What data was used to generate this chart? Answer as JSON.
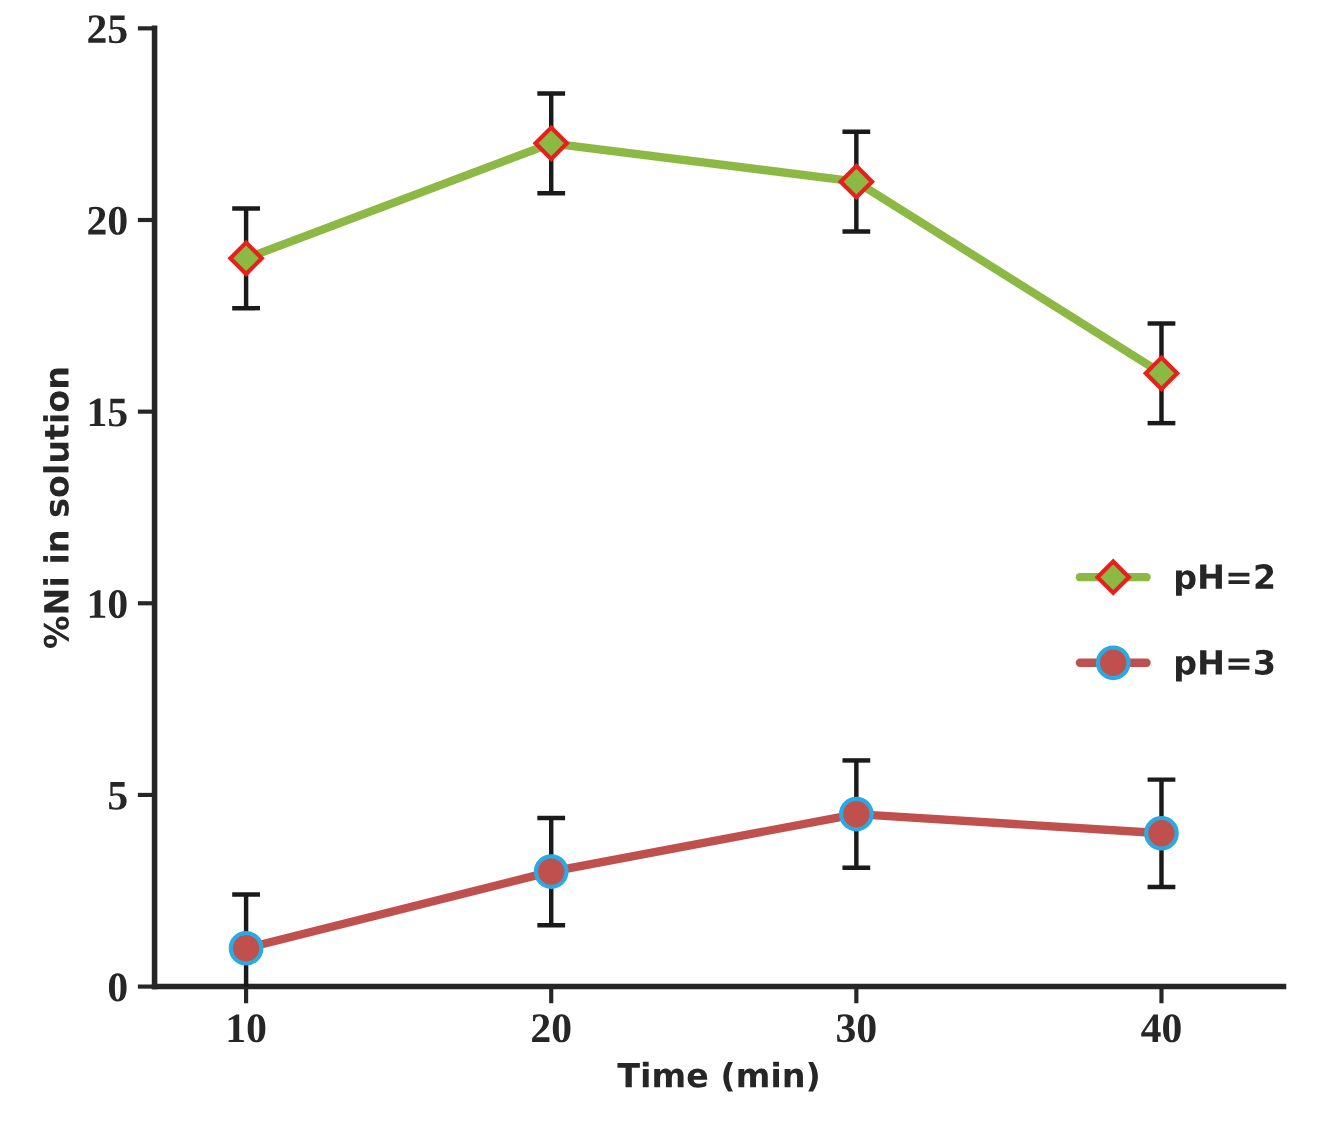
{
  "chart_data": {
    "type": "line",
    "xlabel": "Time (min)",
    "ylabel": "%Ni in solution",
    "x": [
      10,
      20,
      30,
      40
    ],
    "series": [
      {
        "name": "pH=2",
        "color": "#8cb844",
        "marker": "diamond",
        "values": [
          19,
          22,
          21,
          16
        ],
        "errors": [
          1.3,
          1.3,
          1.3,
          1.3
        ]
      },
      {
        "name": "pH=3",
        "color": "#c0504d",
        "marker": "circle",
        "values": [
          1,
          3,
          4.5,
          4
        ],
        "errors": [
          1.4,
          1.4,
          1.4,
          1.4
        ]
      }
    ],
    "xlim": [
      7,
      44
    ],
    "ylim": [
      0,
      25
    ],
    "xticks": [
      10,
      20,
      30,
      40
    ],
    "yticks": [
      0,
      5,
      10,
      15,
      20,
      25
    ],
    "grid": false,
    "legend": "right",
    "line_style": "solid"
  }
}
